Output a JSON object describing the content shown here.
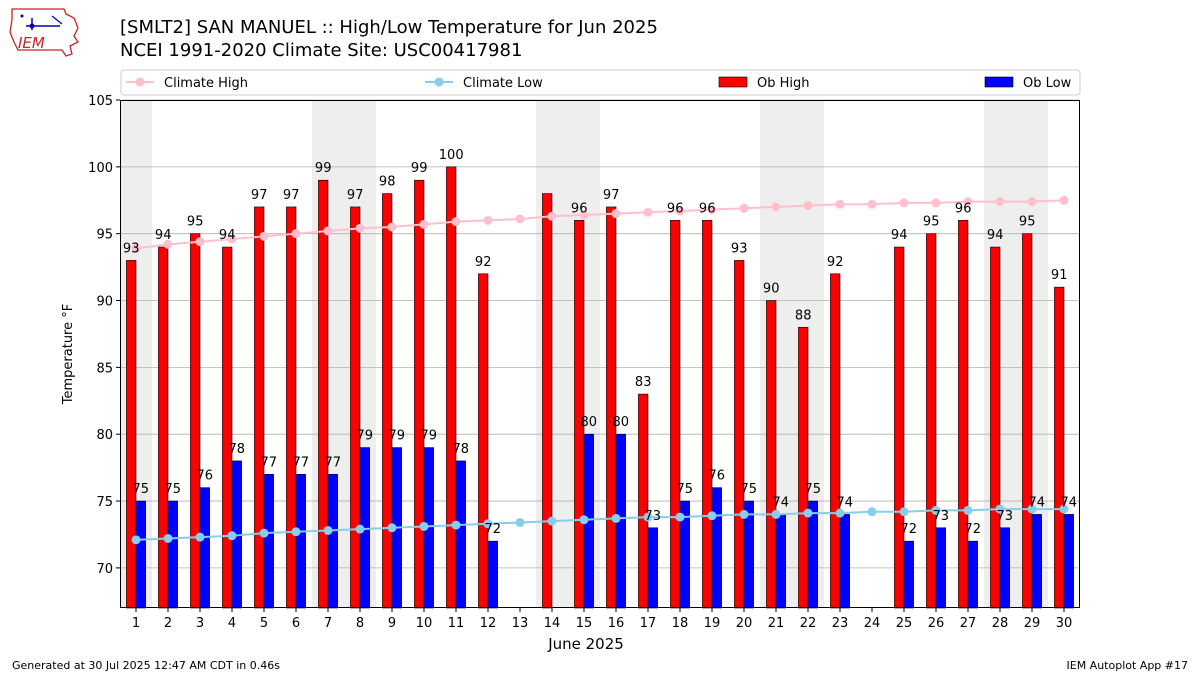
{
  "header": {
    "title_line1": "[SMLT2] SAN MANUEL :: High/Low Temperature for Jun 2025",
    "title_line2": "NCEI 1991-2020 Climate Site: USC00417981",
    "logo_text": "IEM"
  },
  "footer": {
    "left": "Generated at 30 Jul 2025 12:47 AM CDT in 0.46s",
    "right": "IEM Autoplot App #17"
  },
  "colors": {
    "ob_high": "#ff0000",
    "ob_low": "#0000ff",
    "climate_high": "#ffc0cb",
    "climate_low": "#87ceeb",
    "weekend_shade": "#eeeeee",
    "grid": "#b0b0b0"
  },
  "chart_data": {
    "type": "bar",
    "title": "High/Low Temperature for Jun 2025",
    "xlabel": "June 2025",
    "ylabel": "Temperature °F",
    "ylim": [
      67,
      105
    ],
    "yticks": [
      70,
      75,
      80,
      85,
      90,
      95,
      100,
      105
    ],
    "grid": true,
    "legend_position": "top",
    "legend": [
      "Climate High",
      "Climate Low",
      "Ob High",
      "Ob Low"
    ],
    "x": [
      1,
      2,
      3,
      4,
      5,
      6,
      7,
      8,
      9,
      10,
      11,
      12,
      13,
      14,
      15,
      16,
      17,
      18,
      19,
      20,
      21,
      22,
      23,
      24,
      25,
      26,
      27,
      28,
      29,
      30
    ],
    "shaded_days": [
      1,
      7,
      8,
      14,
      15,
      21,
      22,
      28,
      29
    ],
    "series": [
      {
        "name": "Ob High",
        "kind": "bar",
        "values": [
          93,
          94,
          95,
          94,
          97,
          97,
          99,
          97,
          98,
          99,
          100,
          92,
          null,
          98,
          96,
          97,
          83,
          96,
          96,
          93,
          90,
          88,
          92,
          null,
          94,
          95,
          96,
          94,
          95,
          91
        ],
        "labeled": [
          true,
          true,
          true,
          true,
          true,
          true,
          true,
          true,
          true,
          true,
          true,
          true,
          false,
          false,
          true,
          true,
          true,
          true,
          true,
          true,
          true,
          true,
          true,
          false,
          true,
          true,
          true,
          true,
          true,
          true
        ]
      },
      {
        "name": "Ob Low",
        "kind": "bar",
        "values": [
          75,
          75,
          76,
          78,
          77,
          77,
          77,
          79,
          79,
          79,
          78,
          72,
          null,
          null,
          80,
          80,
          73,
          75,
          76,
          75,
          74,
          75,
          74,
          null,
          72,
          73,
          72,
          73,
          74,
          74
        ],
        "labeled": [
          true,
          true,
          true,
          true,
          true,
          true,
          true,
          true,
          true,
          true,
          true,
          true,
          false,
          false,
          true,
          true,
          true,
          true,
          true,
          true,
          true,
          true,
          true,
          false,
          true,
          true,
          true,
          true,
          true,
          true
        ]
      },
      {
        "name": "Climate High",
        "kind": "line",
        "values": [
          93.9,
          94.2,
          94.4,
          94.6,
          94.8,
          95.0,
          95.2,
          95.4,
          95.5,
          95.7,
          95.9,
          96.0,
          96.1,
          96.3,
          96.4,
          96.5,
          96.6,
          96.7,
          96.8,
          96.9,
          97.0,
          97.1,
          97.2,
          97.2,
          97.3,
          97.3,
          97.4,
          97.4,
          97.4,
          97.5
        ]
      },
      {
        "name": "Climate Low",
        "kind": "line",
        "values": [
          72.1,
          72.2,
          72.3,
          72.4,
          72.6,
          72.7,
          72.8,
          72.9,
          73.0,
          73.1,
          73.2,
          73.3,
          73.4,
          73.5,
          73.6,
          73.7,
          73.8,
          73.8,
          73.9,
          74.0,
          74.0,
          74.1,
          74.1,
          74.2,
          74.2,
          74.3,
          74.3,
          74.4,
          74.4,
          74.4
        ]
      }
    ]
  }
}
